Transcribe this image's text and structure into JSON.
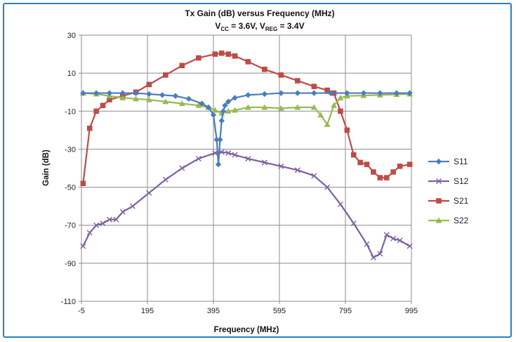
{
  "chart_data": {
    "type": "line",
    "title": "Tx Gain (dB) versus Frequency (MHz)",
    "subtitle": {
      "vcc_label": "V",
      "vcc_sub": "CC",
      "vcc_value": " = 3.6V, ",
      "vreg_label": "V",
      "vreg_sub": "REG",
      "vreg_value": " = 3.4V"
    },
    "xlabel": "Frequency (MHz)",
    "ylabel": "Gain (dB)",
    "xlim": [
      -5,
      995
    ],
    "ylim": [
      -110,
      30
    ],
    "xticks": [
      -5,
      195,
      395,
      595,
      795,
      995
    ],
    "yticks": [
      30,
      10,
      -10,
      -30,
      -50,
      -70,
      -90,
      -110
    ],
    "grid": true,
    "legend_position": "right",
    "series": [
      {
        "name": "S11",
        "color": "#4a7ebb",
        "marker": "diamond",
        "x": [
          0,
          40,
          80,
          120,
          160,
          200,
          240,
          280,
          320,
          360,
          380,
          395,
          405,
          410,
          415,
          420,
          425,
          430,
          440,
          460,
          500,
          550,
          600,
          650,
          700,
          750,
          800,
          850,
          900,
          950,
          990
        ],
        "y": [
          -0.5,
          -0.5,
          -0.5,
          -0.5,
          -0.5,
          -1,
          -1.5,
          -2,
          -3.5,
          -6,
          -8,
          -12,
          -25,
          -38,
          -25,
          -15,
          -10,
          -7,
          -5,
          -3,
          -1.5,
          -1,
          -0.5,
          -0.5,
          -0.5,
          -0.5,
          -0.5,
          -0.5,
          -0.5,
          -0.5,
          -0.5
        ]
      },
      {
        "name": "S12",
        "color": "#7d60a0",
        "marker": "x",
        "x": [
          0,
          20,
          40,
          60,
          80,
          100,
          120,
          150,
          200,
          250,
          300,
          350,
          400,
          420,
          440,
          460,
          500,
          550,
          600,
          650,
          700,
          740,
          780,
          820,
          860,
          880,
          900,
          920,
          940,
          960,
          990
        ],
        "y": [
          -81,
          -74,
          -70,
          -69,
          -67,
          -67,
          -63,
          -60,
          -53,
          -46,
          -40,
          -35,
          -32,
          -31.5,
          -32,
          -33,
          -35,
          -37,
          -39,
          -41,
          -44,
          -50,
          -59,
          -69,
          -80,
          -87,
          -85,
          -75,
          -77,
          -78,
          -81
        ]
      },
      {
        "name": "S21",
        "color": "#be4b48",
        "marker": "square",
        "x": [
          0,
          20,
          40,
          60,
          80,
          120,
          160,
          200,
          250,
          300,
          350,
          400,
          420,
          440,
          460,
          500,
          550,
          600,
          650,
          700,
          740,
          760,
          780,
          800,
          820,
          840,
          860,
          880,
          900,
          920,
          940,
          960,
          990
        ],
        "y": [
          -48,
          -19,
          -10,
          -7,
          -4,
          -2,
          0,
          4,
          9,
          14,
          18,
          20,
          20.5,
          20,
          19,
          16,
          12,
          9,
          6,
          3,
          1,
          -0.5,
          -10,
          -20,
          -33,
          -37,
          -38,
          -42,
          -45,
          -45,
          -42,
          -39,
          -38
        ]
      },
      {
        "name": "S22",
        "color": "#98b954",
        "marker": "triangle",
        "x": [
          0,
          40,
          80,
          120,
          160,
          200,
          250,
          300,
          350,
          380,
          400,
          420,
          440,
          460,
          500,
          550,
          600,
          650,
          700,
          720,
          740,
          760,
          780,
          800,
          850,
          900,
          950,
          990
        ],
        "y": [
          -0.5,
          -1,
          -2,
          -3,
          -3.5,
          -4,
          -5,
          -6,
          -7,
          -8,
          -9.5,
          -11,
          -10,
          -9.5,
          -8,
          -8,
          -8.5,
          -8,
          -8,
          -12,
          -17,
          -7,
          -3,
          -2,
          -1.8,
          -1.5,
          -1.2,
          -1
        ]
      }
    ]
  }
}
